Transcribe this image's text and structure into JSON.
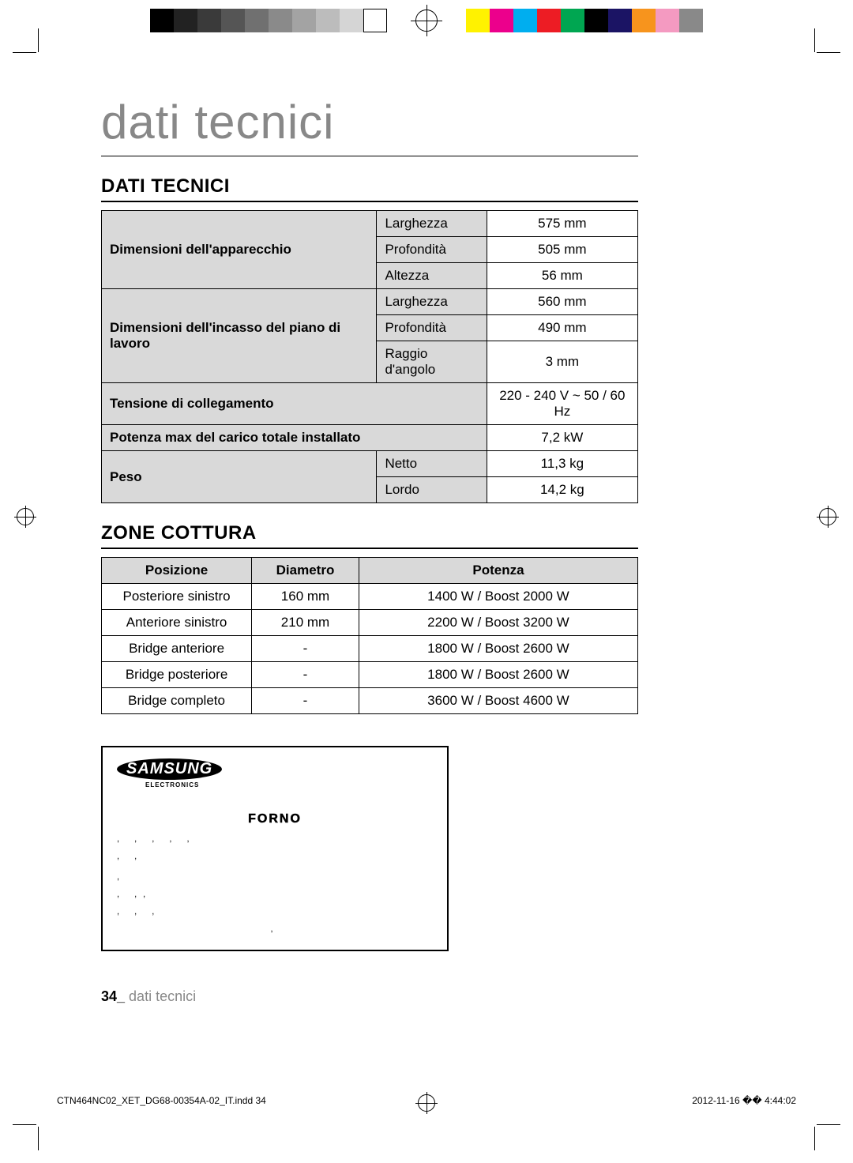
{
  "print_bar": {
    "grays": [
      "#000000",
      "#222222",
      "#3a3a3a",
      "#555555",
      "#707070",
      "#8a8a8a",
      "#a3a3a3",
      "#bcbcbc",
      "#d5d5d5",
      "#ffffff"
    ],
    "colors": [
      "#fff200",
      "#ec008c",
      "#00aeef",
      "#ed1c24",
      "#00a651",
      "#000000",
      "#1b1464",
      "#f7941d",
      "#f49ac1",
      "#898989"
    ]
  },
  "title": "dati tecnici",
  "section1": "DATI TECNICI",
  "table1": {
    "rows": [
      {
        "group": "Dimensioni dell'apparecchio",
        "label": "Larghezza",
        "value": "575 mm"
      },
      {
        "group": "",
        "label": "Profondità",
        "value": "505 mm"
      },
      {
        "group": "",
        "label": "Altezza",
        "value": "56 mm"
      },
      {
        "group": "Dimensioni dell'incasso del piano di lavoro",
        "label": "Larghezza",
        "value": "560 mm"
      },
      {
        "group": "",
        "label": "Profondità",
        "value": "490 mm"
      },
      {
        "group": "",
        "label": "Raggio d'angolo",
        "value": "3 mm"
      },
      {
        "group": "Tensione di collegamento",
        "label": "",
        "value": "220 - 240 V ~ 50 / 60 Hz"
      },
      {
        "group": "Potenza max del carico totale installato",
        "label": "",
        "value": "7,2 kW"
      },
      {
        "group": "Peso",
        "label": "Netto",
        "value": "11,3 kg"
      },
      {
        "group": "",
        "label": "Lordo",
        "value": "14,2 kg"
      }
    ]
  },
  "section2": "ZONE COTTURA",
  "table2": {
    "columns": [
      "Posizione",
      "Diametro",
      "Potenza"
    ],
    "rows": [
      [
        "Posteriore sinistro",
        "160 mm",
        "1400 W / Boost 2000 W"
      ],
      [
        "Anteriore sinistro",
        "210 mm",
        "2200 W / Boost 3200 W"
      ],
      [
        "Bridge anteriore",
        "-",
        "1800 W / Boost 2600 W"
      ],
      [
        "Bridge posteriore",
        "-",
        "1800 W / Boost 2600 W"
      ],
      [
        "Bridge completo",
        "-",
        "3600 W / Boost 4600 W"
      ]
    ]
  },
  "label_box": {
    "brand": "SAMSUNG",
    "sub": "ELECTRONICS",
    "heading": "FORNO"
  },
  "footer": {
    "page_num": "34_",
    "section": " dati tecnici"
  },
  "doc_footer": {
    "file": "CTN464NC02_XET_DG68-00354A-02_IT.indd   34",
    "timestamp": "2012-11-16   �� 4:44:02"
  }
}
